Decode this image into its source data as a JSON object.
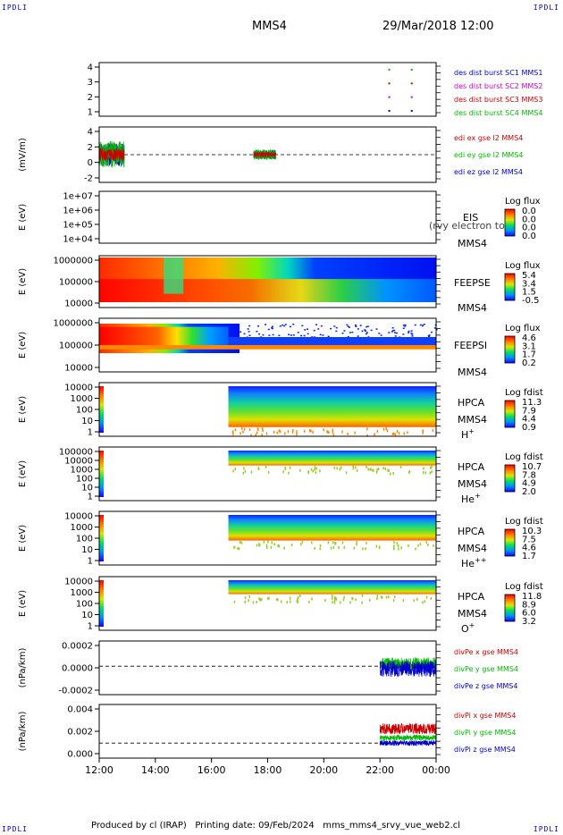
{
  "corners": {
    "tl": "IPDLI",
    "tr": "IPDLI",
    "bl": "IPDLI",
    "br": "IPDLI"
  },
  "header": {
    "mission": "MMS4",
    "datetime": "29/Mar/2018 12:00"
  },
  "footer": {
    "text": "Produced by cl (IRAP)   Printing date: 09/Feb/2024   mms_mms4_srvy_vue_web2.cl"
  },
  "chart_data": {
    "type": "multi-panel",
    "time_axis": {
      "ticks": [
        "12:00",
        "14:00",
        "16:00",
        "18:00",
        "20:00",
        "22:00",
        "00:00"
      ],
      "range_hours": [
        12,
        24
      ]
    },
    "panels": [
      {
        "id": "p1",
        "type": "scatter",
        "yticks": [
          "4",
          "3",
          "2",
          "1"
        ],
        "legend": [
          {
            "label": "des dist burst SC1 MMS1",
            "color": "#0000cc"
          },
          {
            "label": "des dist burst SC2 MMS2",
            "color": "#cc00cc"
          },
          {
            "label": "des dist burst SC3 MMS3",
            "color": "#cc0000"
          },
          {
            "label": "des dist burst SC4 MMS4",
            "color": "#00bb00"
          }
        ],
        "marks": [
          {
            "t": 22.3,
            "sc": 4,
            "color": "#00bb00"
          },
          {
            "t": 23.1,
            "sc": 4,
            "color": "#00bb00"
          },
          {
            "t": 22.3,
            "sc": 3,
            "color": "#cc0000"
          },
          {
            "t": 23.1,
            "sc": 3,
            "color": "#cc0000"
          },
          {
            "t": 22.3,
            "sc": 2,
            "color": "#cc00cc"
          },
          {
            "t": 23.1,
            "sc": 2,
            "color": "#cc00cc"
          },
          {
            "t": 22.3,
            "sc": 1,
            "color": "#0000cc"
          },
          {
            "t": 23.1,
            "sc": 1,
            "color": "#0000cc"
          }
        ]
      },
      {
        "id": "p2",
        "type": "line",
        "ylabel": "(mV/m)",
        "yticks": [
          "4",
          "2",
          "0",
          "-2"
        ],
        "legend": [
          {
            "label": "edi ex gse l2 MMS4",
            "color": "#cc0000"
          },
          {
            "label": "edi ey gse l2 MMS4",
            "color": "#00bb00"
          },
          {
            "label": "edi ez gse l2 MMS4",
            "color": "#0000cc"
          }
        ]
      },
      {
        "id": "p3",
        "type": "heatmap",
        "ylabel": "E (eV)",
        "yticks": [
          "1e+07",
          "1e+06",
          "1e+05",
          "1e+04"
        ],
        "side": [
          "EIS",
          "MMS4"
        ],
        "overlay": "(rvy electron to",
        "cb_title": "Log flux",
        "cb_ticks": [
          "0.0",
          "0.0",
          "0.0",
          "0.0"
        ]
      },
      {
        "id": "p4",
        "type": "heatmap",
        "ylabel": "E (eV)",
        "yticks": [
          "1000000",
          "100000",
          "10000"
        ],
        "side": [
          "FEEPSE",
          "MMS4"
        ],
        "cb_title": "Log flux",
        "cb_ticks": [
          "5.4",
          "3.4",
          "1.5",
          "-0.5"
        ]
      },
      {
        "id": "p5",
        "type": "heatmap",
        "ylabel": "E (eV)",
        "yticks": [
          "1000000",
          "100000",
          "10000"
        ],
        "side": [
          "FEEPSI",
          "MMS4"
        ],
        "cb_title": "Log flux",
        "cb_ticks": [
          "4.6",
          "3.1",
          "1.7",
          "0.2"
        ]
      },
      {
        "id": "p6",
        "type": "heatmap",
        "ylabel": "E (eV)",
        "yticks": [
          "10000",
          "1000",
          "100",
          "10",
          "1"
        ],
        "side": [
          "HPCA",
          "MMS4",
          "H",
          "+"
        ],
        "cb_title": "Log fdist",
        "cb_ticks": [
          "11.3",
          "7.9",
          "4.4",
          "0.9"
        ]
      },
      {
        "id": "p7",
        "type": "heatmap",
        "ylabel": "E (eV)",
        "yticks": [
          "100000",
          "10000",
          "1000",
          "100",
          "10",
          "1"
        ],
        "side": [
          "HPCA",
          "MMS4",
          "He",
          "+"
        ],
        "cb_title": "Log fdist",
        "cb_ticks": [
          "10.7",
          "7.8",
          "4.9",
          "2.0"
        ]
      },
      {
        "id": "p8",
        "type": "heatmap",
        "ylabel": "E (eV)",
        "yticks": [
          "10000",
          "1000",
          "100",
          "10",
          "1"
        ],
        "side": [
          "HPCA",
          "MMS4",
          "He",
          "++"
        ],
        "cb_title": "Log fdist",
        "cb_ticks": [
          "10.3",
          "7.5",
          "4.6",
          "1.7"
        ]
      },
      {
        "id": "p9",
        "type": "heatmap",
        "ylabel": "E (eV)",
        "yticks": [
          "10000",
          "1000",
          "100",
          "10",
          "1"
        ],
        "side": [
          "HPCA",
          "MMS4",
          "O",
          "+"
        ],
        "cb_title": "Log fdist",
        "cb_ticks": [
          "11.8",
          "8.9",
          "6.0",
          "3.2"
        ]
      },
      {
        "id": "p10",
        "type": "line",
        "ylabel": "(nPa/km)",
        "yticks": [
          "0.0002",
          "0.0000",
          "-0.0002"
        ],
        "legend": [
          {
            "label": "divPe x gse MMS4",
            "color": "#cc0000"
          },
          {
            "label": "divPe y gse MMS4",
            "color": "#00bb00"
          },
          {
            "label": "divPe z gse MMS4",
            "color": "#0000cc"
          }
        ]
      },
      {
        "id": "p11",
        "type": "line",
        "ylabel": "(nPa/km)",
        "yticks": [
          "0.004",
          "0.002",
          "0.000"
        ],
        "legend": [
          {
            "label": "divPi x gse MMS4",
            "color": "#cc0000"
          },
          {
            "label": "divPi y gse MMS4",
            "color": "#00bb00"
          },
          {
            "label": "divPi z gse MMS4",
            "color": "#0000cc"
          }
        ]
      }
    ]
  }
}
